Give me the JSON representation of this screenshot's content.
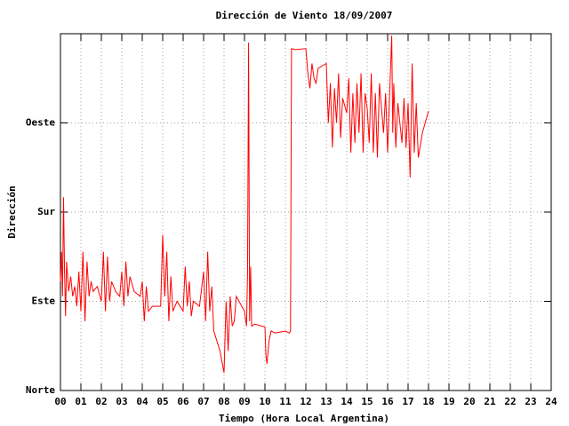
{
  "chart_data": {
    "type": "line",
    "title": "Dirección de Viento 18/09/2007",
    "x_label": "Tiempo (Hora Local Argentina)",
    "y_label": "Dirección",
    "color": "#ff0000",
    "grid": true,
    "xlim": [
      0,
      24
    ],
    "ylim": [
      0,
      360
    ],
    "xticks": [
      {
        "value": 0,
        "label": "00"
      },
      {
        "value": 1,
        "label": "01"
      },
      {
        "value": 2,
        "label": "02"
      },
      {
        "value": 3,
        "label": "03"
      },
      {
        "value": 4,
        "label": "04"
      },
      {
        "value": 5,
        "label": "05"
      },
      {
        "value": 6,
        "label": "06"
      },
      {
        "value": 7,
        "label": "07"
      },
      {
        "value": 8,
        "label": "08"
      },
      {
        "value": 9,
        "label": "09"
      },
      10,
      11,
      12,
      13,
      14,
      15,
      16,
      17,
      18,
      19,
      20,
      21,
      22,
      23,
      24
    ],
    "yticks": [
      {
        "value": 0,
        "label": "Norte"
      },
      {
        "value": 90,
        "label": "Este"
      },
      {
        "value": 180,
        "label": "Sur"
      },
      {
        "value": 270,
        "label": "Oeste"
      }
    ],
    "x": [
      0.0,
      0.05,
      0.1,
      0.15,
      0.2,
      0.25,
      0.3,
      0.4,
      0.5,
      0.6,
      0.7,
      0.8,
      0.9,
      1.0,
      1.1,
      1.2,
      1.3,
      1.4,
      1.5,
      1.6,
      1.8,
      2.0,
      2.1,
      2.2,
      2.3,
      2.4,
      2.5,
      2.7,
      2.9,
      3.0,
      3.1,
      3.2,
      3.3,
      3.4,
      3.6,
      3.9,
      4.0,
      4.1,
      4.2,
      4.3,
      4.5,
      4.9,
      5.0,
      5.1,
      5.2,
      5.3,
      5.4,
      5.5,
      5.7,
      6.0,
      6.1,
      6.2,
      6.3,
      6.4,
      6.5,
      6.8,
      7.0,
      7.1,
      7.2,
      7.3,
      7.4,
      7.5,
      7.8,
      8.0,
      8.1,
      8.2,
      8.3,
      8.4,
      8.5,
      8.6,
      9.0,
      9.1,
      9.15,
      9.2,
      9.25,
      9.3,
      9.35,
      9.5,
      10.0,
      10.05,
      10.1,
      10.2,
      10.3,
      10.5,
      11.0,
      11.2,
      11.25,
      11.3,
      11.5,
      12.0,
      12.1,
      12.2,
      12.3,
      12.4,
      12.5,
      12.6,
      13.0,
      13.1,
      13.2,
      13.3,
      13.4,
      13.5,
      13.6,
      13.7,
      13.8,
      14.0,
      14.1,
      14.2,
      14.3,
      14.4,
      14.5,
      14.6,
      14.7,
      14.8,
      14.9,
      15.0,
      15.1,
      15.2,
      15.3,
      15.4,
      15.5,
      15.6,
      15.8,
      15.9,
      16.0,
      16.1,
      16.2,
      16.25,
      16.3,
      16.4,
      16.5,
      16.6,
      16.7,
      16.8,
      16.9,
      17.0,
      17.1,
      17.2,
      17.3,
      17.4,
      17.5,
      17.7,
      18.0
    ],
    "values": [
      110,
      140,
      95,
      195,
      120,
      75,
      130,
      100,
      115,
      95,
      105,
      85,
      120,
      80,
      140,
      70,
      130,
      95,
      110,
      100,
      105,
      90,
      140,
      80,
      135,
      90,
      110,
      100,
      95,
      120,
      85,
      130,
      95,
      115,
      100,
      95,
      110,
      70,
      105,
      80,
      85,
      85,
      157,
      95,
      140,
      70,
      115,
      80,
      90,
      80,
      125,
      85,
      110,
      75,
      90,
      85,
      120,
      70,
      140,
      80,
      105,
      60,
      40,
      18,
      90,
      40,
      95,
      65,
      70,
      95,
      80,
      65,
      120,
      351,
      70,
      125,
      65,
      67,
      64,
      35,
      27,
      50,
      60,
      58,
      60,
      58,
      60,
      345,
      344,
      345,
      320,
      305,
      330,
      315,
      310,
      325,
      330,
      270,
      310,
      245,
      305,
      270,
      320,
      255,
      295,
      280,
      315,
      240,
      300,
      250,
      310,
      260,
      320,
      240,
      300,
      285,
      250,
      320,
      240,
      300,
      235,
      310,
      260,
      300,
      240,
      300,
      358,
      260,
      310,
      245,
      290,
      270,
      250,
      295,
      245,
      290,
      215,
      330,
      240,
      290,
      235,
      260,
      282
    ]
  }
}
